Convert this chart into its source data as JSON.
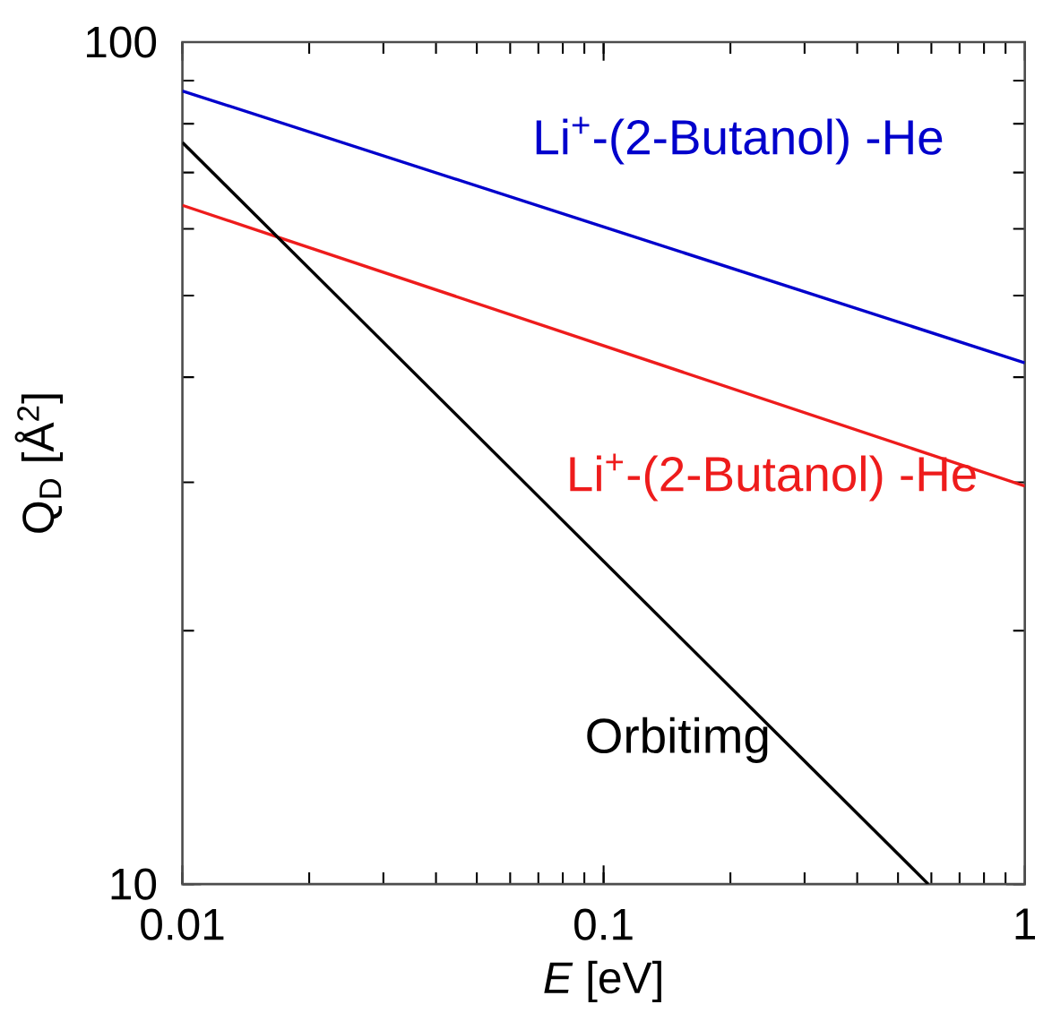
{
  "chart_data": {
    "type": "line",
    "xlabel": "*E* [eV]",
    "ylabel": "Q$_{D}$ [Å$^{2}$]",
    "log": "xy",
    "grid": false,
    "marker": "none",
    "line_style": "solid",
    "xlim": [
      0.01,
      1
    ],
    "ylim": [
      10,
      100
    ],
    "xticks": [
      0.01,
      0.1,
      1
    ],
    "yticks": [
      10,
      100
    ],
    "series": [
      {
        "color": "#0000cc",
        "x": [
          0.01,
          1
        ],
        "values": [
          87.5,
          41.6
        ]
      },
      {
        "color": "#ee1c1c",
        "x": [
          0.01,
          1
        ],
        "values": [
          64,
          29.7
        ]
      },
      {
        "color": "#000000",
        "x": [
          0.01,
          0.59
        ],
        "values": [
          76,
          10
        ]
      }
    ],
    "annotations": [
      "Li$^{+}$-(2-Butanol) -He",
      "Li$^{+}$-(2-Butanol) -He",
      "Orbitimg"
    ]
  }
}
